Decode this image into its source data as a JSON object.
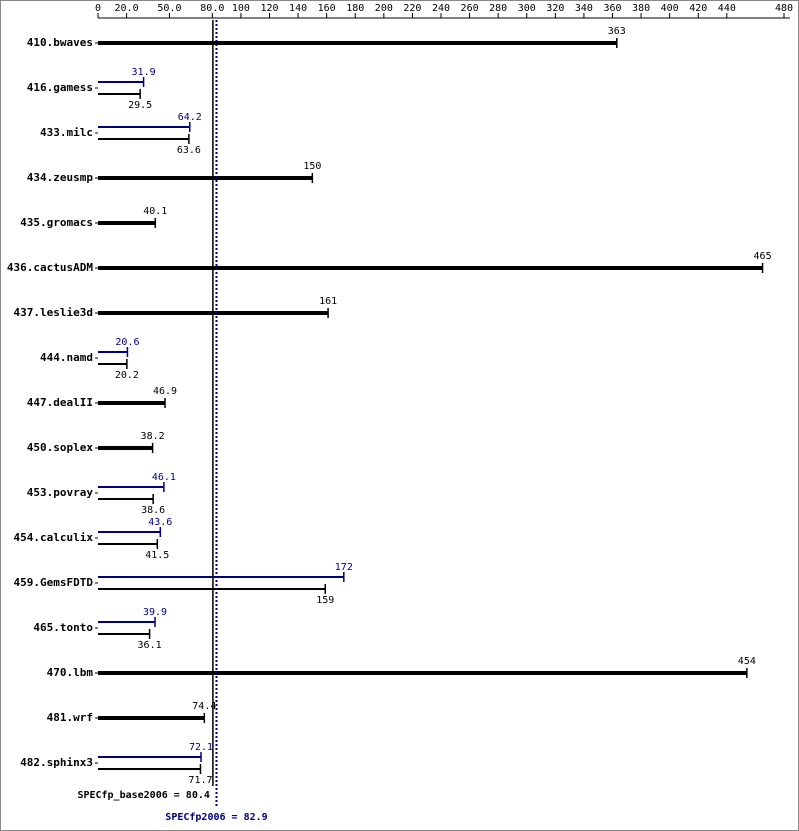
{
  "chart_data": {
    "type": "bar",
    "categories": [
      "410.bwaves",
      "416.gamess",
      "433.milc",
      "434.zeusmp",
      "435.gromacs",
      "436.cactusADM",
      "437.leslie3d",
      "444.namd",
      "447.dealII",
      "450.soplex",
      "453.povray",
      "454.calculix",
      "459.GemsFDTD",
      "465.tonto",
      "470.lbm",
      "481.wrf",
      "482.sphinx3"
    ],
    "series": [
      {
        "color": "#000080",
        "values": [
          null,
          31.9,
          64.2,
          null,
          null,
          null,
          null,
          20.6,
          null,
          null,
          46.1,
          43.6,
          172,
          39.9,
          null,
          null,
          72.1
        ]
      },
      {
        "color": "#000000",
        "values": [
          363,
          29.5,
          63.6,
          150,
          40.1,
          465,
          161,
          20.2,
          46.9,
          38.2,
          38.6,
          41.5,
          159,
          36.1,
          454,
          74.4,
          71.7
        ]
      }
    ],
    "xlim": [
      0,
      480
    ],
    "xticks": [
      0,
      {
        "value": 20,
        "label": "20.0"
      },
      {
        "value": 50,
        "label": "50.0"
      },
      {
        "value": 80,
        "label": "80.0"
      },
      100,
      120,
      140,
      160,
      180,
      200,
      220,
      240,
      260,
      280,
      300,
      320,
      340,
      360,
      380,
      400,
      420,
      440,
      480
    ],
    "reference_lines": [
      {
        "value": 80.4,
        "label": "SPECfp_base2006 = 80.4",
        "color": "#000000"
      },
      {
        "value": 82.9,
        "label": "SPECfp2006 = 82.9",
        "color": "#000080"
      }
    ]
  }
}
